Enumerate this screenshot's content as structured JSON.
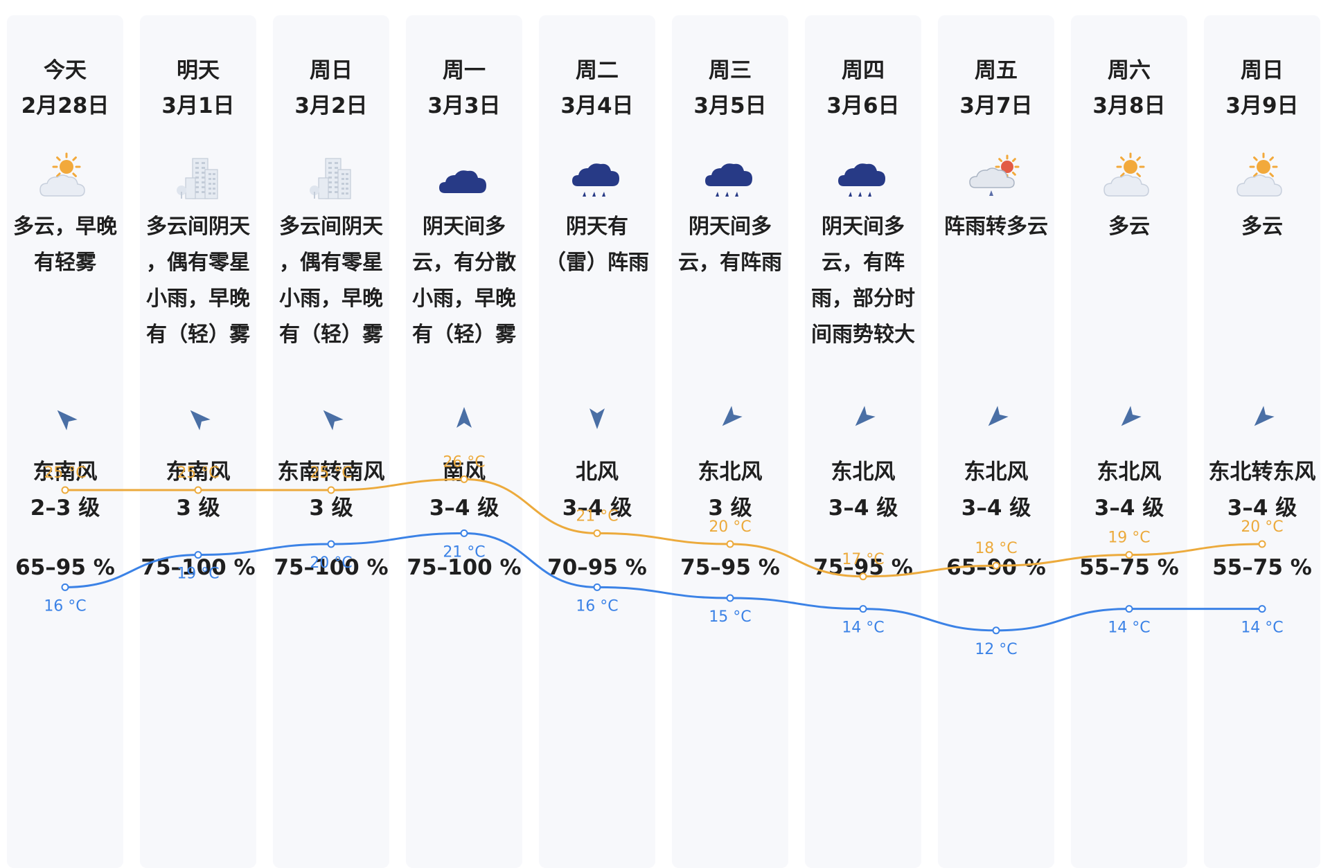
{
  "days": [
    {
      "day": "今天",
      "date": "2月28日",
      "icon": "partly-cloudy-icon",
      "desc": [
        "多云，早晚",
        "有轻雾"
      ],
      "wind_dir": "东南风",
      "wind_level": "2–3 级",
      "humidity": "65–95 %",
      "high": "25 °C",
      "low": "16 °C",
      "high_c": 25,
      "low_c": 16,
      "wind_from_deg": 135
    },
    {
      "day": "明天",
      "date": "3月1日",
      "icon": "fog-buildings-icon",
      "desc": [
        "多云间阴天",
        "，偶有零星",
        "小雨，早晚",
        "有（轻）雾"
      ],
      "wind_dir": "东南风",
      "wind_level": "3 级",
      "humidity": "75–100 %",
      "high": "25 °C",
      "low": "19 °C",
      "high_c": 25,
      "low_c": 19,
      "wind_from_deg": 135
    },
    {
      "day": "周日",
      "date": "3月2日",
      "icon": "fog-buildings-icon",
      "desc": [
        "多云间阴天",
        "，偶有零星",
        "小雨，早晚",
        "有（轻）雾"
      ],
      "wind_dir": "东南转南风",
      "wind_level": "3 级",
      "humidity": "75–100 %",
      "high": "25 °C",
      "low": "20 °C",
      "high_c": 25,
      "low_c": 20,
      "wind_from_deg": 135
    },
    {
      "day": "周一",
      "date": "3月3日",
      "icon": "overcast-icon",
      "desc": [
        "阴天间多",
        "云，有分散",
        "小雨，早晚",
        "有（轻）雾"
      ],
      "wind_dir": "南风",
      "wind_level": "3–4 级",
      "humidity": "75–100 %",
      "high": "26 °C",
      "low": "21 °C",
      "high_c": 26,
      "low_c": 21,
      "wind_from_deg": 180
    },
    {
      "day": "周二",
      "date": "3月4日",
      "icon": "rain-icon",
      "desc": [
        "阴天有",
        "（雷）阵雨"
      ],
      "wind_dir": "北风",
      "wind_level": "3–4 级",
      "humidity": "70–95 %",
      "high": "21 °C",
      "low": "16 °C",
      "high_c": 21,
      "low_c": 16,
      "wind_from_deg": 0
    },
    {
      "day": "周三",
      "date": "3月5日",
      "icon": "rain-icon",
      "desc": [
        "阴天间多",
        "云，有阵雨"
      ],
      "wind_dir": "东北风",
      "wind_level": "3 级",
      "humidity": "75–95 %",
      "high": "20 °C",
      "low": "15 °C",
      "high_c": 20,
      "low_c": 15,
      "wind_from_deg": 45
    },
    {
      "day": "周四",
      "date": "3月6日",
      "icon": "rain-icon",
      "desc": [
        "阴天间多",
        "云，有阵",
        "雨，部分时",
        "间雨势较大"
      ],
      "wind_dir": "东北风",
      "wind_level": "3–4 级",
      "humidity": "75–95 %",
      "high": "17 °C",
      "low": "14 °C",
      "high_c": 17,
      "low_c": 14,
      "wind_from_deg": 45
    },
    {
      "day": "周五",
      "date": "3月7日",
      "icon": "shower-sun-icon",
      "desc": [
        "阵雨转多云"
      ],
      "wind_dir": "东北风",
      "wind_level": "3–4 级",
      "humidity": "65–90 %",
      "high": "18 °C",
      "low": "12 °C",
      "high_c": 18,
      "low_c": 12,
      "wind_from_deg": 45
    },
    {
      "day": "周六",
      "date": "3月8日",
      "icon": "partly-cloudy-icon",
      "desc": [
        "多云"
      ],
      "wind_dir": "东北风",
      "wind_level": "3–4 级",
      "humidity": "55–75 %",
      "high": "19 °C",
      "low": "14 °C",
      "high_c": 19,
      "low_c": 14,
      "wind_from_deg": 45
    },
    {
      "day": "周日",
      "date": "3月9日",
      "icon": "partly-cloudy-icon",
      "desc": [
        "多云"
      ],
      "wind_dir": "东北转东风",
      "wind_level": "3–4 级",
      "humidity": "55–75 %",
      "high": "20 °C",
      "low": "14 °C",
      "high_c": 20,
      "low_c": 14,
      "wind_from_deg": 45
    }
  ],
  "colors": {
    "high_line": "#ecaa3c",
    "low_line": "#3b82e6",
    "card_bg": "#f7f8fb",
    "icon_dark": "#273a86"
  }
}
